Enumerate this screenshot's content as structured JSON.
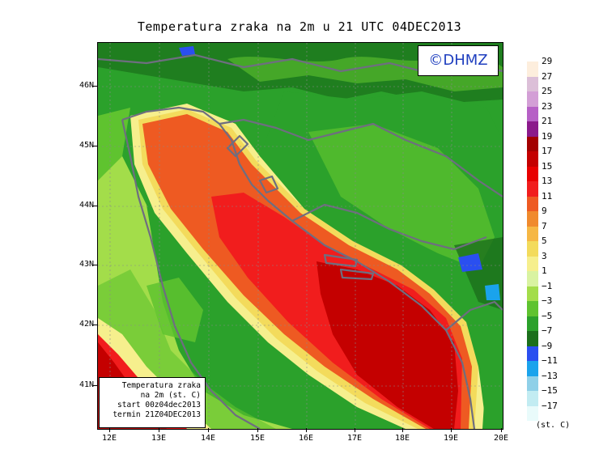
{
  "title": "Temperatura zraka na 2m u 21 UTC 04DEC2013",
  "logo": "©DHMZ",
  "info_box": {
    "line1": "Temperatura zraka",
    "line2": "na 2m (st. C)",
    "line3": "start 00z04dec2013",
    "line4": "termin 21Z04DEC2013"
  },
  "latitude_labels": [
    "46N",
    "45N",
    "44N",
    "43N",
    "42N",
    "41N"
  ],
  "longitude_labels": [
    "12E",
    "13E",
    "14E",
    "15E",
    "16E",
    "17E",
    "18E",
    "19E",
    "20E"
  ],
  "legend": {
    "labels": [
      "29",
      "27",
      "25",
      "23",
      "21",
      "19",
      "17",
      "15",
      "13",
      "11",
      "9",
      "7",
      "5",
      "3",
      "1",
      "−1",
      "−3",
      "−5",
      "−7",
      "−9",
      "−11",
      "−13",
      "−15",
      "−17"
    ],
    "colors": [
      "#fdeedd",
      "#dcbfd8",
      "#d39fd6",
      "#b660c6",
      "#8b1a8b",
      "#a30000",
      "#c40000",
      "#e80000",
      "#f11d1d",
      "#ee5a22",
      "#f08a2d",
      "#f6b744",
      "#f3db5c",
      "#f6ef8d",
      "#d9f3a1",
      "#a3dd4a",
      "#5fc32f",
      "#2ba12b",
      "#1b6f1b",
      "#2a4ff0",
      "#1aa3ec",
      "#8fd0e8",
      "#c2ecf2",
      "#e9fbfb"
    ],
    "units": "(st. C)"
  },
  "palette": {
    "sea_warm": "#c40000",
    "sea_mid": "#e80000",
    "coast_orange": "#ee5a22",
    "land_green": "#2ba12b",
    "border_gray": "#6e6e80"
  }
}
